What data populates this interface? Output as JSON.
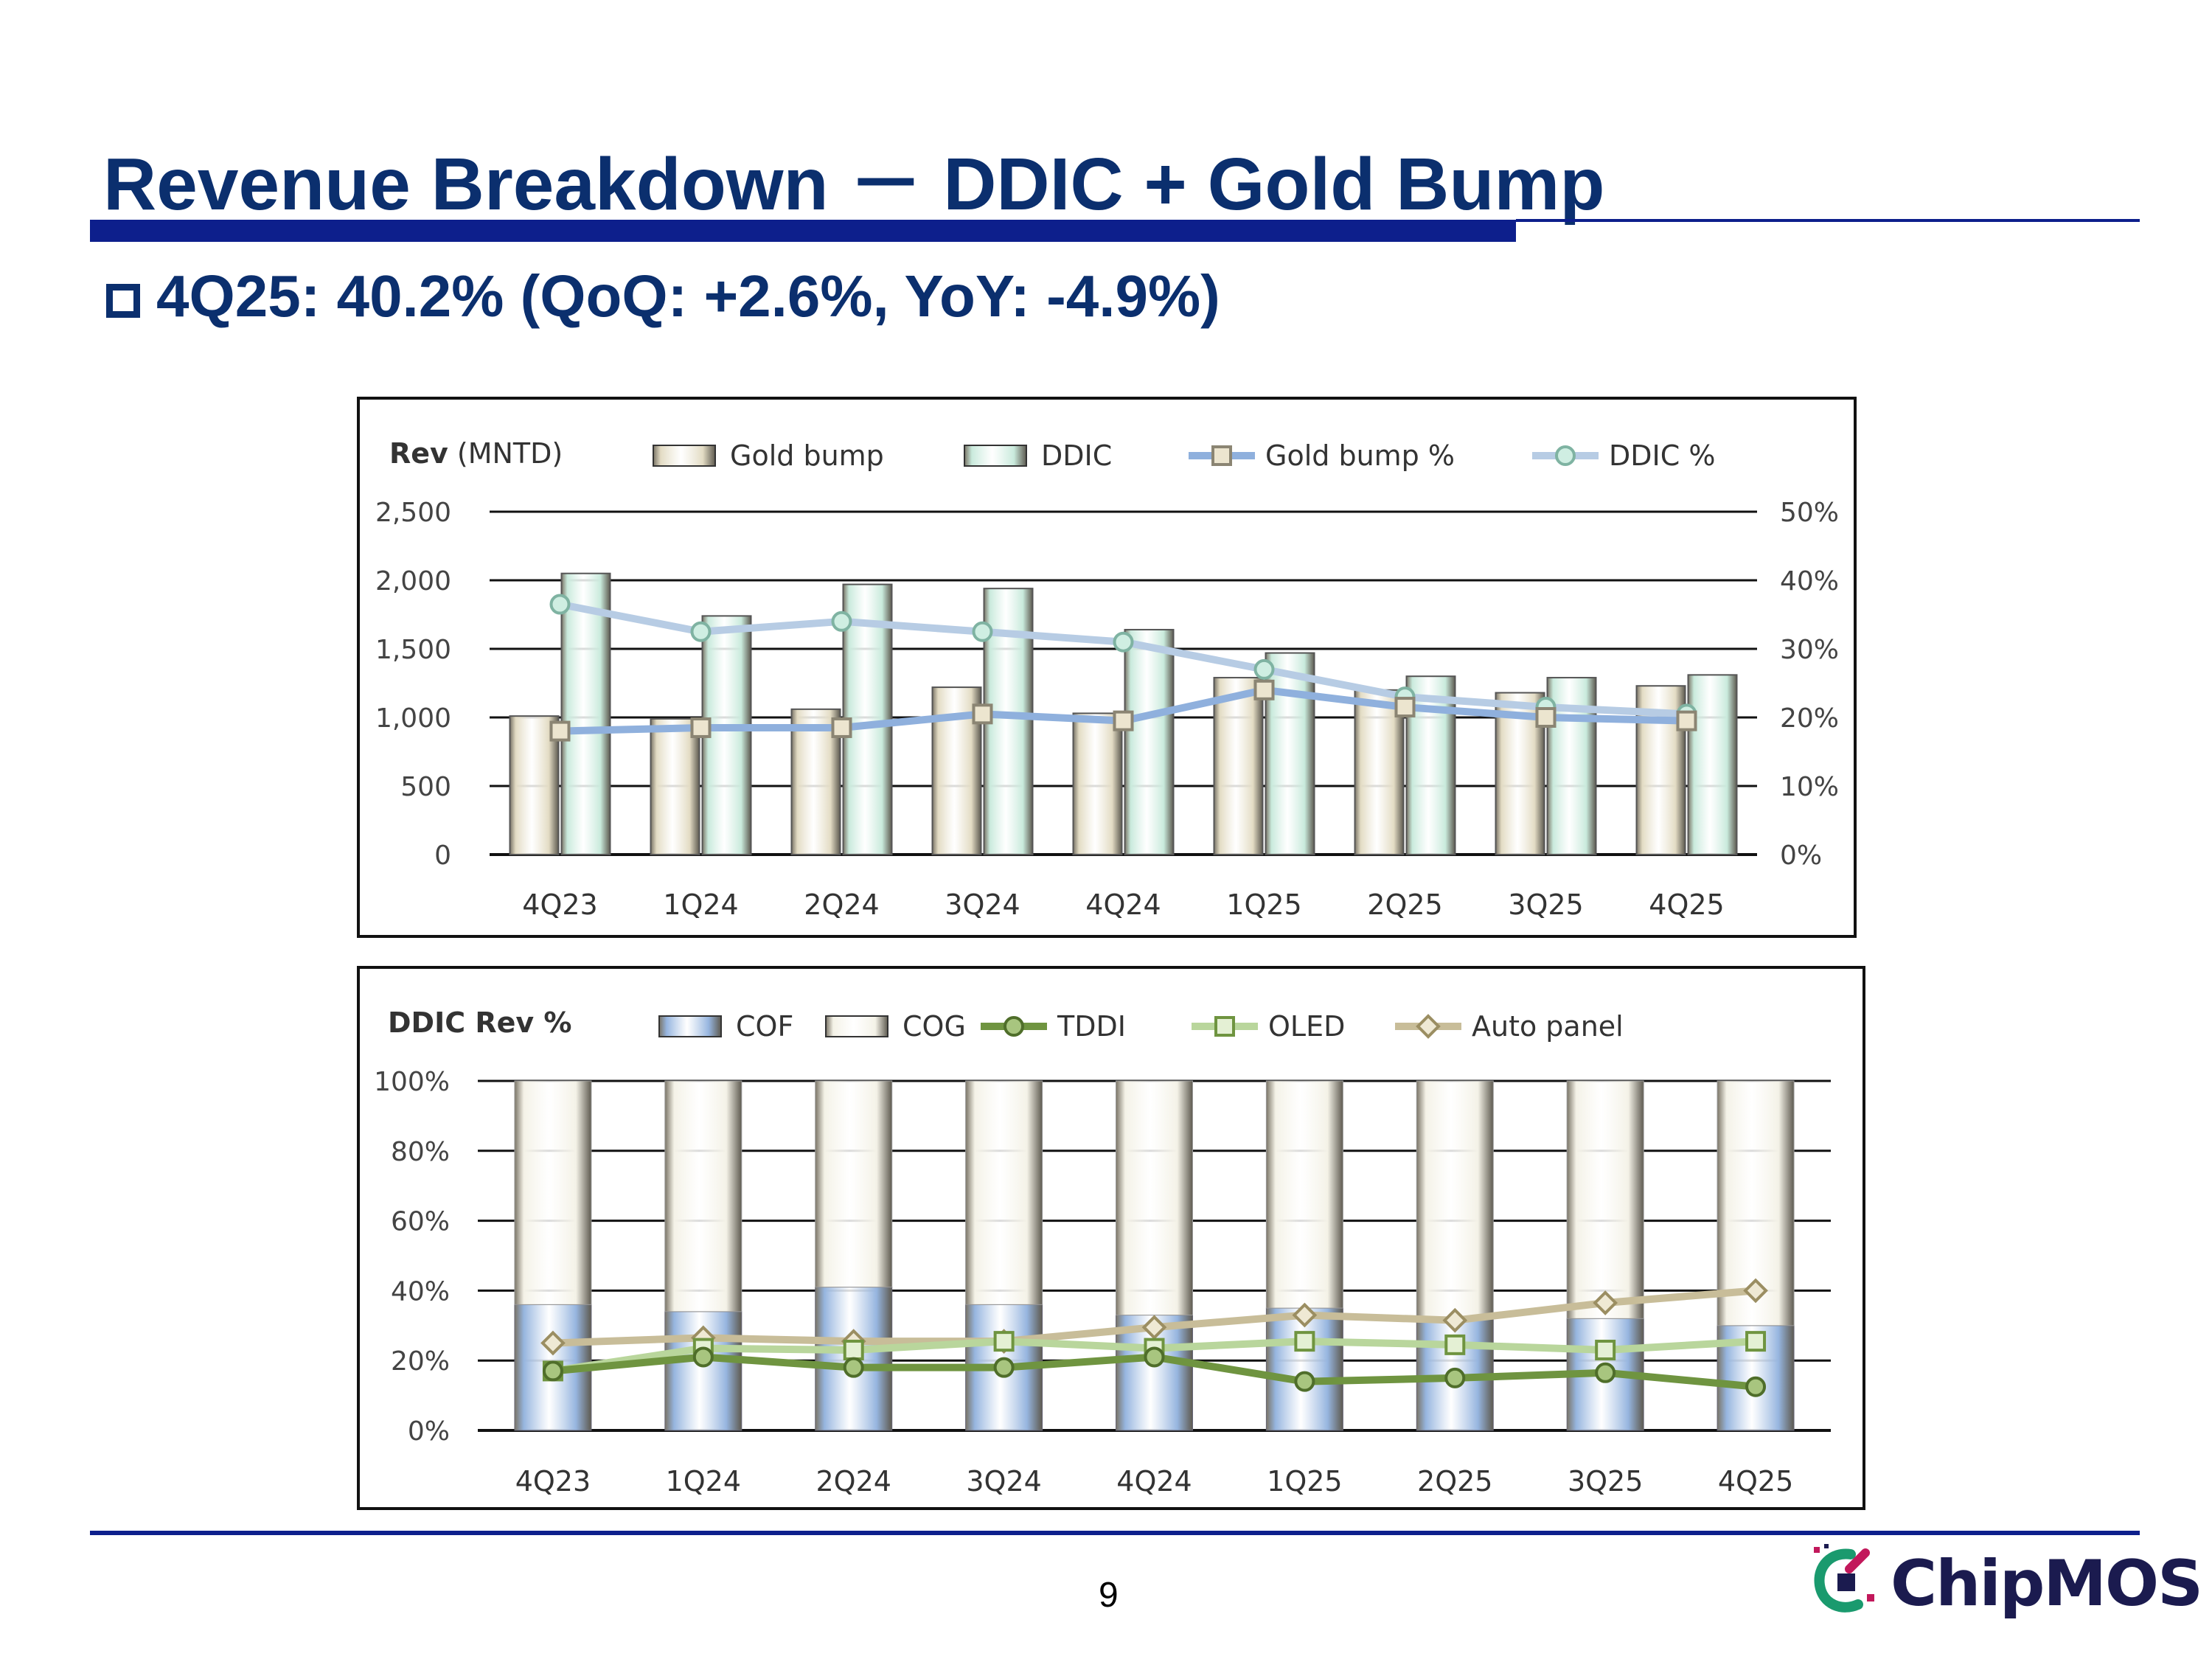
{
  "slide": {
    "title": "Revenue Breakdown － DDIC + Gold Bump",
    "subtitle": "4Q25: 40.2% (QoQ: +2.6%, YoY: -4.9%)",
    "page_number": "9",
    "logo_text": "ChipMOS"
  },
  "colors": {
    "navy": "#0b2f6e",
    "rule": "#0d1f8c",
    "gold_bump": "#e3dcc4",
    "ddic": "#c9eadc",
    "gold_bump_pct": "#8fb0dd",
    "ddic_pct": "#b7cce4",
    "cof": "#96b5df",
    "cog": "#f4f2e7",
    "tddi": "#6f9440",
    "oled": "#b9d69c",
    "auto_panel": "#c8bd99"
  },
  "chart_data": [
    {
      "type": "bar",
      "title_bold": "Rev",
      "title_rest": " (MNTD)",
      "categories": [
        "4Q23",
        "1Q24",
        "2Q24",
        "3Q24",
        "4Q24",
        "1Q25",
        "2Q25",
        "3Q25",
        "4Q25"
      ],
      "y_left": {
        "ylim": [
          0,
          2500
        ],
        "ticks": [
          "0",
          "500",
          "1,000",
          "1,500",
          "2,000",
          "2,500"
        ]
      },
      "y_right": {
        "ylim": [
          0,
          50
        ],
        "ticks": [
          "0%",
          "10%",
          "20%",
          "30%",
          "40%",
          "50%"
        ]
      },
      "series": [
        {
          "name": "Gold bump",
          "kind": "bar",
          "axis": "left",
          "values": [
            1010,
            990,
            1060,
            1220,
            1030,
            1290,
            1200,
            1180,
            1230
          ]
        },
        {
          "name": "DDIC",
          "kind": "bar",
          "axis": "left",
          "values": [
            2050,
            1740,
            1970,
            1940,
            1640,
            1470,
            1300,
            1290,
            1310
          ]
        },
        {
          "name": "Gold bump %",
          "kind": "line",
          "axis": "right",
          "values": [
            18,
            18.5,
            18.5,
            20.5,
            19.5,
            24,
            21.5,
            20,
            19.5
          ]
        },
        {
          "name": "DDIC %",
          "kind": "line",
          "axis": "right",
          "values": [
            36.5,
            32.5,
            34,
            32.5,
            31,
            27,
            23,
            21.5,
            20.5
          ]
        }
      ]
    },
    {
      "type": "bar",
      "stacked": true,
      "title": "DDIC Rev %",
      "categories": [
        "4Q23",
        "1Q24",
        "2Q24",
        "3Q24",
        "4Q24",
        "1Q25",
        "2Q25",
        "3Q25",
        "4Q25"
      ],
      "y_left": {
        "ylim": [
          0,
          100
        ],
        "ticks": [
          "0%",
          "20%",
          "40%",
          "60%",
          "80%",
          "100%"
        ]
      },
      "series": [
        {
          "name": "COF",
          "kind": "bar",
          "values": [
            36,
            34,
            41,
            36,
            33,
            35,
            32,
            32,
            30
          ]
        },
        {
          "name": "COG",
          "kind": "bar",
          "values": [
            64,
            66,
            59,
            64,
            67,
            65,
            68,
            68,
            70
          ]
        },
        {
          "name": "TDDI",
          "kind": "line",
          "values": [
            17,
            21,
            18,
            18,
            21,
            14,
            15,
            16.5,
            12.5
          ]
        },
        {
          "name": "OLED",
          "kind": "line",
          "values": [
            17,
            23.5,
            23,
            25.5,
            23.5,
            25.5,
            24.5,
            23,
            25.5
          ]
        },
        {
          "name": "Auto panel",
          "kind": "line",
          "values": [
            25,
            26.5,
            25.5,
            25.5,
            29.5,
            33,
            31.5,
            36.5,
            40
          ]
        }
      ]
    }
  ]
}
